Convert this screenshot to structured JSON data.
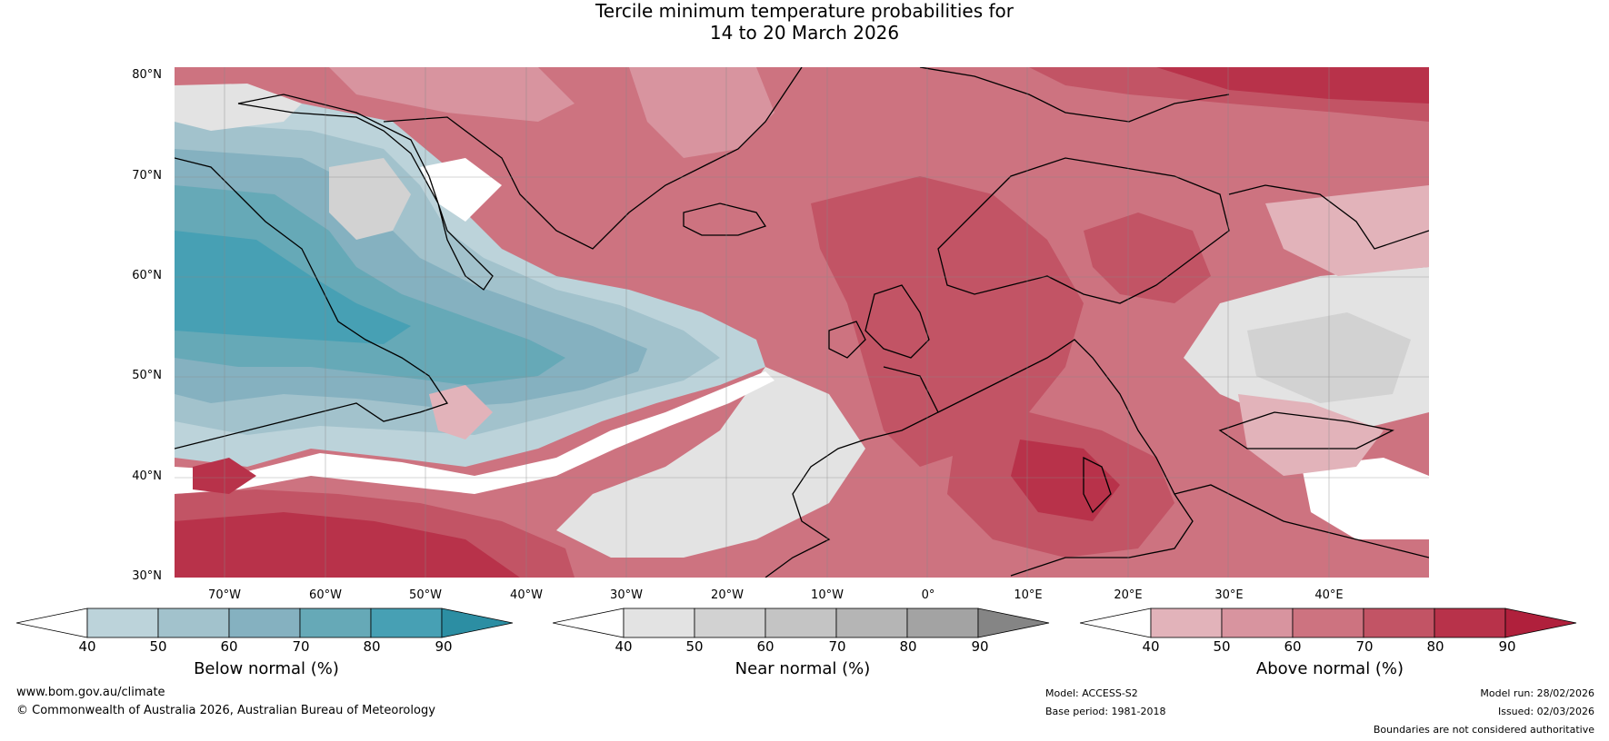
{
  "title": {
    "line1": "Tercile minimum temperature probabilities for",
    "line2": "14 to 20 March 2026"
  },
  "map": {
    "lat_ticks": [
      "80°N",
      "70°N",
      "60°N",
      "50°N",
      "40°N",
      "30°N"
    ],
    "lon_ticks": [
      "70°W",
      "60°W",
      "50°W",
      "40°W",
      "30°W",
      "20°W",
      "10°W",
      "0°",
      "10°E",
      "20°E",
      "30°E",
      "40°E"
    ],
    "lat_range": [
      30,
      81
    ],
    "lon_range": [
      -75,
      50
    ]
  },
  "colorbars": [
    {
      "label": "Below normal (%)",
      "ticks": [
        "40",
        "50",
        "60",
        "70",
        "80",
        "90"
      ],
      "colors": [
        "#ffffff",
        "#bcd3da",
        "#a2c2cc",
        "#85b1c0",
        "#66a9b7",
        "#47a0b4",
        "#2c8ea3"
      ]
    },
    {
      "label": "Near normal (%)",
      "ticks": [
        "40",
        "50",
        "60",
        "70",
        "80",
        "90"
      ],
      "colors": [
        "#ffffff",
        "#e3e3e3",
        "#d2d2d2",
        "#c4c4c4",
        "#b5b5b5",
        "#a3a3a3",
        "#858585"
      ]
    },
    {
      "label": "Above normal (%)",
      "ticks": [
        "40",
        "50",
        "60",
        "70",
        "80",
        "90"
      ],
      "colors": [
        "#ffffff",
        "#e2b3ba",
        "#d8949f",
        "#cd7380",
        "#c25465",
        "#b8324a",
        "#b0203c"
      ]
    }
  ],
  "footer": {
    "website": "www.bom.gov.au/climate",
    "copyright": "© Commonwealth of Australia 2026, Australian Bureau of Meteorology",
    "model": "Model: ACCESS-S2",
    "base_period": "Base period: 1981-2018",
    "model_run": "Model run: 28/02/2026",
    "issued": "Issued: 02/03/2026",
    "disclaimer": "Boundaries are not considered authoritative"
  }
}
